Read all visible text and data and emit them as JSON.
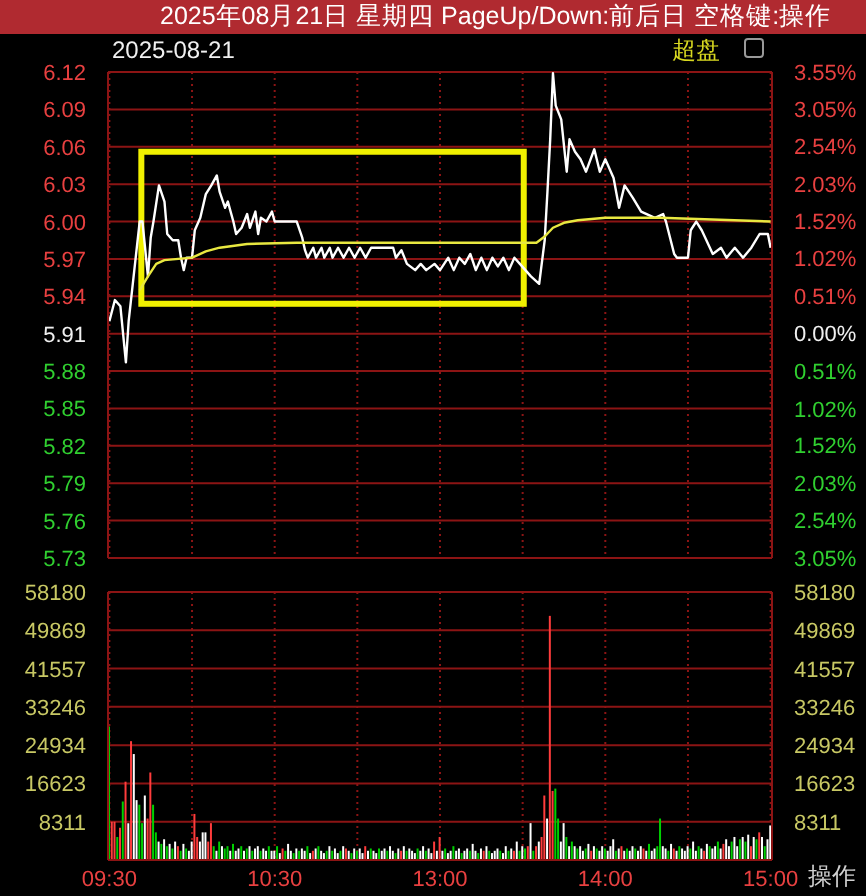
{
  "chart_data": [
    {
      "type": "line",
      "title": "2025年08月21日 星期四 PageUp/Down:前后日 空格键:操作",
      "subtitle": "2025-08-21",
      "annotations": [
        "超盘"
      ],
      "categories": [
        null,
        null,
        null,
        null,
        null,
        null,
        null,
        null,
        null,
        null,
        null,
        null,
        null,
        null,
        null,
        null,
        null,
        null,
        null,
        null,
        null,
        null,
        null,
        null,
        null,
        null,
        null,
        null,
        null,
        null,
        null,
        null,
        null,
        null,
        null,
        null,
        null,
        null,
        null,
        null,
        null,
        null,
        null,
        null,
        null,
        null,
        null,
        null,
        null,
        null,
        null,
        null,
        null,
        null,
        null,
        null,
        null,
        null,
        null,
        null,
        null,
        null,
        null,
        null,
        null,
        null,
        null,
        null,
        null,
        null,
        null,
        null,
        null,
        null,
        null,
        null,
        null,
        null,
        null,
        null,
        null,
        null,
        null,
        null,
        null,
        null,
        null,
        null,
        null,
        null,
        null,
        null,
        null,
        null,
        null,
        null,
        null,
        null,
        null,
        null,
        null,
        null,
        null,
        null,
        null,
        null,
        null,
        null,
        null,
        null,
        null,
        null,
        null,
        null,
        null,
        null,
        null,
        null,
        null,
        null,
        null,
        null,
        null,
        null,
        null,
        null,
        null,
        null,
        null,
        null,
        null,
        null,
        null,
        null,
        null,
        null,
        null,
        null,
        null,
        null,
        null,
        null,
        null,
        null,
        null,
        null,
        null,
        null,
        null,
        null,
        null,
        null,
        null,
        null,
        null,
        null,
        null,
        null,
        null,
        null,
        null,
        null,
        null,
        null,
        null,
        null,
        null,
        null,
        null,
        null,
        null,
        null,
        null,
        null,
        null,
        null,
        null,
        null,
        null,
        null,
        null,
        null,
        null,
        null,
        null,
        null,
        null,
        null,
        null,
        null,
        null,
        null,
        null,
        null,
        null,
        null,
        null,
        null,
        null,
        null,
        null,
        null,
        null,
        null,
        null,
        null,
        null,
        null,
        null,
        null,
        null,
        null,
        null,
        null,
        null,
        null,
        null,
        null,
        null,
        null,
        null,
        null,
        null,
        null,
        null,
        null,
        null,
        null,
        null,
        null,
        null,
        null,
        null,
        null,
        null,
        null,
        null,
        null,
        null,
        null,
        null
      ],
      "ylim": [
        5.73,
        6.12
      ],
      "yticks": [
        6.12,
        6.09,
        6.06,
        6.03,
        {
          "value": 6.0,
          "label": "6.00"
        },
        5.97,
        5.94,
        5.91,
        5.88,
        5.85,
        5.82,
        5.79,
        5.76,
        5.73
      ],
      "y2lim": [
        -3.05,
        3.55
      ],
      "y2ticks": [
        {
          "value": 3.55,
          "label": "3.55%"
        },
        {
          "value": 3.05,
          "label": "3.05%"
        },
        {
          "value": 2.54,
          "label": "2.54%"
        },
        {
          "value": 2.03,
          "label": "2.03%"
        },
        {
          "value": 1.52,
          "label": "1.52%"
        },
        {
          "value": 1.02,
          "label": "1.02%"
        },
        {
          "value": 0.51,
          "label": "0.51%"
        },
        {
          "value": 0,
          "label": "0.00%"
        },
        {
          "value": -0.51,
          "label": "0.51%"
        },
        {
          "value": -1.02,
          "label": "1.02%"
        },
        {
          "value": -1.52,
          "label": "1.52%"
        },
        {
          "value": -2.03,
          "label": "2.03%"
        },
        {
          "value": -2.54,
          "label": "2.54%"
        },
        {
          "value": -3.05,
          "label": "3.05%"
        }
      ],
      "grid": true,
      "tick_labels": "y",
      "marker": "none",
      "line_style": "solid",
      "series": [
        {
          "color": "#ffffff",
          "values": [
            5.92,
            null,
            5.937,
            null,
            5.932,
            null,
            5.887,
            5.92,
            null,
            null,
            null,
            6.0,
            6.0,
            null,
            5.956,
            5.987,
            6.0,
            null,
            6.029,
            null,
            6.016,
            5.99,
            null,
            5.985,
            null,
            5.985,
            5.971,
            5.961,
            5.971,
            null,
            5.971,
            5.993,
            null,
            6.003,
            null,
            6.022,
            null,
            6.029,
            null,
            6.037,
            6.024,
            null,
            6.011,
            6.016,
            null,
            6.0,
            5.99,
            null,
            5.995,
            null,
            6.006,
            5.995,
            null,
            6.008,
            5.99,
            6.003,
            null,
            6.0,
            null,
            6.008,
            6.0,
            null,
            null,
            null,
            null,
            null,
            null,
            null,
            6.0,
            null,
            5.987,
            5.977,
            5.971,
            null,
            5.979,
            5.971,
            null,
            5.979,
            5.971,
            null,
            5.979,
            5.971,
            null,
            5.979,
            null,
            5.971,
            null,
            5.979,
            null,
            5.971,
            null,
            5.979,
            null,
            5.971,
            null,
            5.979,
            null,
            null,
            null,
            null,
            null,
            null,
            null,
            5.979,
            5.971,
            null,
            5.977,
            null,
            5.966,
            null,
            null,
            5.961,
            null,
            5.966,
            null,
            5.961,
            null,
            null,
            5.966,
            null,
            5.961,
            null,
            null,
            5.971,
            null,
            5.961,
            null,
            5.971,
            null,
            5.966,
            null,
            5.974,
            null,
            5.961,
            null,
            5.971,
            null,
            5.961,
            null,
            5.971,
            null,
            5.964,
            null,
            5.971,
            null,
            5.961,
            null,
            5.971,
            null,
            5.966,
            null,
            5.961,
            null,
            5.956,
            null,
            null,
            5.95,
            null,
            5.985,
            6.024,
            6.066,
            6.119,
            6.093,
            null,
            6.082,
            null,
            6.04,
            6.066,
            null,
            6.056,
            null,
            6.05,
            null,
            6.04,
            null,
            null,
            6.058,
            null,
            6.04,
            null,
            6.05,
            null,
            null,
            6.035,
            null,
            6.011,
            null,
            6.029,
            null,
            null,
            6.019,
            null,
            null,
            6.008,
            null,
            null,
            null,
            null,
            6.003,
            null,
            null,
            6.006,
            6.0,
            null,
            null,
            5.974,
            5.971,
            null,
            null,
            null,
            5.971,
            5.993,
            null,
            6.0,
            null,
            5.993,
            null,
            null,
            null,
            5.974,
            null,
            null,
            5.979,
            null,
            5.971,
            null,
            null,
            5.979,
            null,
            null,
            5.971,
            null,
            null,
            5.979,
            null,
            null,
            5.99,
            null,
            null,
            5.99,
            5.979
          ]
        },
        {
          "color": "#e8e840",
          "values": [
            null,
            null,
            null,
            null,
            null,
            null,
            null,
            null,
            null,
            null,
            null,
            5.945,
            null,
            null,
            5.956,
            null,
            null,
            5.966,
            null,
            null,
            5.969,
            null,
            null,
            null,
            null,
            null,
            null,
            null,
            null,
            null,
            5.971,
            null,
            null,
            null,
            null,
            5.976,
            null,
            null,
            null,
            null,
            5.979,
            null,
            null,
            null,
            null,
            null,
            null,
            null,
            null,
            null,
            5.982,
            null,
            null,
            null,
            null,
            null,
            null,
            null,
            null,
            null,
            null,
            null,
            null,
            null,
            null,
            null,
            null,
            null,
            5.983,
            null,
            null,
            null,
            null,
            null,
            null,
            null,
            null,
            null,
            null,
            null,
            null,
            null,
            null,
            null,
            null,
            null,
            null,
            null,
            null,
            null,
            null,
            null,
            null,
            null,
            null,
            null,
            null,
            null,
            null,
            null,
            null,
            null,
            null,
            null,
            null,
            null,
            null,
            null,
            null,
            null,
            null,
            null,
            null,
            null,
            null,
            null,
            null,
            null,
            null,
            null,
            null,
            null,
            null,
            null,
            null,
            null,
            null,
            null,
            null,
            null,
            null,
            null,
            null,
            null,
            null,
            null,
            null,
            null,
            null,
            null,
            null,
            null,
            null,
            null,
            null,
            null,
            null,
            null,
            null,
            null,
            5.983,
            null,
            null,
            null,
            null,
            5.983,
            null,
            null,
            5.988,
            null,
            null,
            5.995,
            null,
            null,
            null,
            5.999,
            null,
            null,
            null,
            null,
            6.001,
            null,
            null,
            null,
            null,
            null,
            null,
            null,
            null,
            null,
            6.003,
            null,
            null,
            null,
            null,
            null,
            null,
            null,
            null,
            null,
            null,
            null,
            null,
            null,
            null,
            null,
            null,
            null,
            null,
            null,
            6.003,
            null,
            null,
            null,
            null,
            null,
            null,
            null,
            null,
            null,
            null,
            null,
            null,
            null,
            null,
            null,
            null,
            null,
            null,
            null,
            null,
            null,
            null,
            null,
            null,
            null,
            null,
            null,
            null,
            null,
            null,
            null,
            null,
            null,
            null,
            null,
            null,
            null,
            null,
            null,
            6.0
          ]
        }
      ]
    },
    {
      "type": "bar",
      "annotations": [
        "操作"
      ],
      "categories": [
        "09:30",
        null,
        null,
        null,
        null,
        null,
        null,
        null,
        null,
        null,
        null,
        null,
        null,
        null,
        null,
        null,
        null,
        null,
        null,
        null,
        null,
        null,
        null,
        null,
        null,
        null,
        null,
        null,
        null,
        null,
        null,
        null,
        null,
        null,
        null,
        null,
        null,
        null,
        null,
        null,
        null,
        null,
        null,
        null,
        null,
        null,
        null,
        null,
        null,
        null,
        null,
        null,
        null,
        null,
        null,
        null,
        null,
        null,
        null,
        null,
        "10:30",
        null,
        null,
        null,
        null,
        null,
        null,
        null,
        null,
        null,
        null,
        null,
        null,
        null,
        null,
        null,
        null,
        null,
        null,
        null,
        null,
        null,
        null,
        null,
        null,
        null,
        null,
        null,
        null,
        null,
        null,
        null,
        null,
        null,
        null,
        null,
        null,
        null,
        null,
        null,
        null,
        null,
        null,
        null,
        null,
        null,
        null,
        null,
        null,
        null,
        null,
        null,
        null,
        null,
        null,
        null,
        null,
        null,
        null,
        null,
        "13:00",
        null,
        null,
        null,
        null,
        null,
        null,
        null,
        null,
        null,
        null,
        null,
        null,
        null,
        null,
        null,
        null,
        null,
        null,
        null,
        null,
        null,
        null,
        null,
        null,
        null,
        null,
        null,
        null,
        null,
        null,
        null,
        null,
        null,
        null,
        null,
        null,
        null,
        null,
        null,
        null,
        null,
        null,
        null,
        null,
        null,
        null,
        null,
        null,
        null,
        null,
        null,
        null,
        null,
        null,
        null,
        null,
        null,
        null,
        null,
        "14:00",
        null,
        null,
        null,
        null,
        null,
        null,
        null,
        null,
        null,
        null,
        null,
        null,
        null,
        null,
        null,
        null,
        null,
        null,
        null,
        null,
        null,
        null,
        null,
        null,
        null,
        null,
        null,
        null,
        null,
        null,
        null,
        null,
        null,
        null,
        null,
        null,
        null,
        null,
        null,
        null,
        null,
        null,
        null,
        null,
        null,
        null,
        null,
        null,
        null,
        null,
        null,
        null,
        null,
        null,
        null,
        null,
        null,
        null,
        null,
        "15:00"
      ],
      "ylim": [
        0,
        58180
      ],
      "yticks": [
        8311,
        16623,
        24934,
        33246,
        41557,
        49869,
        58180
      ],
      "y2lim": [
        0,
        58180
      ],
      "y2ticks": [
        8311,
        16623,
        24934,
        33246,
        41557,
        49869,
        58180
      ],
      "grid": true,
      "values": [
        29000,
        8300,
        8300,
        5000,
        7000,
        12700,
        17000,
        8000,
        25800,
        23000,
        13000,
        12000,
        8000,
        14000,
        9000,
        19000,
        12000,
        6000,
        4000,
        3500,
        4500,
        3000,
        3500,
        2500,
        4000,
        3000,
        2000,
        3500,
        2500,
        2000,
        4000,
        10000,
        5000,
        4000,
        6000,
        6000,
        4000,
        8000,
        3000,
        2000,
        4000,
        3000,
        2500,
        3000,
        2000,
        3500,
        2000,
        2500,
        3000,
        2000,
        2500,
        3000,
        2000,
        2500,
        3000,
        2000,
        2500,
        2000,
        3000,
        2000,
        2000,
        3000,
        1500,
        2500,
        2000,
        3500,
        2000,
        1500,
        2500,
        2000,
        2500,
        2000,
        3000,
        1500,
        2000,
        2500,
        3000,
        2000,
        1500,
        2000,
        3000,
        2000,
        2500,
        1500,
        2000,
        3000,
        2500,
        2000,
        1500,
        2500,
        2000,
        2500,
        1500,
        3000,
        2000,
        2500,
        2000,
        1500,
        2500,
        2000,
        2500,
        2000,
        3000,
        2000,
        1500,
        2500,
        2000,
        3000,
        2000,
        2500,
        2000,
        1500,
        2500,
        2000,
        3000,
        2000,
        2500,
        1500,
        4000,
        2000,
        5000,
        2000,
        2500,
        1500,
        2000,
        3000,
        2000,
        2500,
        1500,
        2000,
        2500,
        2000,
        3500,
        2000,
        1500,
        2500,
        2000,
        3000,
        2000,
        1500,
        2000,
        2500,
        2000,
        1500,
        3000,
        2000,
        2500,
        2000,
        4000,
        2000,
        3000,
        2500,
        3000,
        8000,
        2000,
        3000,
        4000,
        5000,
        14000,
        9000,
        53000,
        15000,
        15500,
        9000,
        4000,
        8000,
        5000,
        3000,
        4000,
        3000,
        2500,
        3000,
        2000,
        2500,
        3500,
        2000,
        3000,
        2500,
        2000,
        3000,
        2500,
        2000,
        3000,
        4500,
        2000,
        2500,
        3000,
        2000,
        2500,
        2000,
        3000,
        2500,
        2000,
        3000,
        2500,
        2000,
        3500,
        2000,
        2500,
        3000,
        9000,
        3000,
        2500,
        2000,
        3500,
        2500,
        2000,
        3000,
        2500,
        2000,
        3000,
        2500,
        4000,
        2000,
        3000,
        2500,
        2000,
        3500,
        3000,
        2500,
        3000,
        4000,
        2500,
        3500,
        4500,
        3000,
        4000,
        5000,
        3000,
        4500,
        5000,
        4000,
        5500,
        3000,
        5000,
        4500,
        6000,
        5000,
        3000,
        4500,
        7500
      ],
      "colors": [
        "#00d000",
        "#ff3c3c",
        "#ff3c3c",
        "#00d000",
        "#ff3c3c",
        "#00d000",
        "#ff3c3c",
        "#ffffff",
        "#ff3c3c",
        "#ffffff",
        "#ffffff",
        "#00d000",
        "#00d000",
        "#ffffff",
        "#ff3c3c",
        "#ff3c3c",
        "#00d000",
        "#00d000",
        "#ffffff",
        "#00d000",
        "#ffffff",
        "#00d000",
        "#ffffff",
        "#00d000",
        "#ffffff",
        "#ff3c3c",
        "#00d000",
        "#ffffff",
        "#00d000",
        "#ffffff",
        "#ffffff",
        "#ff3c3c",
        "#ff3c3c",
        "#ffffff",
        "#ffffff",
        "#ffffff",
        "#ff3c3c",
        "#ff3c3c",
        "#00d000",
        "#ffffff",
        "#00d000",
        "#ffffff",
        "#00d000",
        "#00d000",
        "#ffffff",
        "#00d000",
        "#ffffff",
        "#ffffff",
        "#00d000",
        "#ffffff",
        "#00d000",
        "#ffffff",
        "#00d000",
        "#ffffff",
        "#ffffff",
        "#00d000",
        "#ffffff",
        "#ffffff",
        "#00d000",
        "#ffffff",
        "#ffffff",
        "#00d000",
        "#ffffff",
        "#ff3c3c",
        "#00d000",
        "#ffffff",
        "#ffffff",
        "#00d000",
        "#ffffff",
        "#00d000",
        "#ffffff",
        "#ffffff",
        "#00d000",
        "#ffffff",
        "#ff3c3c",
        "#ffffff",
        "#00d000",
        "#ffffff",
        "#ffffff",
        "#00d000",
        "#ffffff",
        "#00d000",
        "#ffffff",
        "#ffffff",
        "#00d000",
        "#ffffff",
        "#ff3c3c",
        "#ffffff",
        "#00d000",
        "#ffffff",
        "#00d000",
        "#ffffff",
        "#ffffff",
        "#ff3c3c",
        "#ffffff",
        "#00d000",
        "#ffffff",
        "#ffffff",
        "#00d000",
        "#ffffff",
        "#ffffff",
        "#00d000",
        "#ffffff",
        "#ffffff",
        "#00d000",
        "#ffffff",
        "#ff3c3c",
        "#ffffff",
        "#00d000",
        "#ffffff",
        "#ffffff",
        "#ffffff",
        "#00d000",
        "#ffffff",
        "#ffffff",
        "#00d000",
        "#ffffff",
        "#ffffff",
        "#ff3c3c",
        "#ffffff",
        "#ff3c3c",
        "#ffffff",
        "#00d000",
        "#ffffff",
        "#ffffff",
        "#00d000",
        "#ffffff",
        "#ffffff",
        "#00d000",
        "#ffffff",
        "#ffffff",
        "#00d000",
        "#ffffff",
        "#ffffff",
        "#00d000",
        "#ffffff",
        "#ff3c3c",
        "#ffffff",
        "#00d000",
        "#ffffff",
        "#ffffff",
        "#ffffff",
        "#00d000",
        "#ffffff",
        "#ffffff",
        "#00d000",
        "#ffffff",
        "#ff3c3c",
        "#ffffff",
        "#00d000",
        "#ffffff",
        "#00d000",
        "#ff3c3c",
        "#ffffff",
        "#00d000",
        "#ff3c3c",
        "#ffffff",
        "#ff3c3c",
        "#ff3c3c",
        "#ffffff",
        "#ff3c3c",
        "#ff3c3c",
        "#00d000",
        "#00d000",
        "#ffffff",
        "#ffffff",
        "#00d000",
        "#ffffff",
        "#00d000",
        "#ffffff",
        "#00d000",
        "#ffffff",
        "#ffffff",
        "#00d000",
        "#ffffff",
        "#ff3c3c",
        "#ffffff",
        "#00d000",
        "#ffffff",
        "#ffffff",
        "#00d000",
        "#ffffff",
        "#ffffff",
        "#ffffff",
        "#00d000",
        "#ffffff",
        "#ff3c3c",
        "#ffffff",
        "#00d000",
        "#ffffff",
        "#ffffff",
        "#00d000",
        "#ffffff",
        "#ffffff",
        "#ff3c3c",
        "#ffffff",
        "#00d000",
        "#ffffff",
        "#ffffff",
        "#00d000",
        "#00d000",
        "#ffffff",
        "#ffffff",
        "#00d000",
        "#ffffff",
        "#ff3c3c",
        "#ffffff",
        "#00d000",
        "#ffffff",
        "#ffffff",
        "#ffffff",
        "#00d000",
        "#ffffff",
        "#ffffff",
        "#00d000",
        "#ffffff",
        "#ff3c3c",
        "#ffffff",
        "#00d000",
        "#ffffff",
        "#ffffff",
        "#00d000",
        "#ffffff",
        "#ff3c3c",
        "#ffffff",
        "#ffffff",
        "#00d000",
        "#ffffff",
        "#ffffff",
        "#00d000",
        "#ffffff",
        "#00d000",
        "#ffffff",
        "#ff3c3c",
        "#ffffff",
        "#00d000",
        "#ff3c3c",
        "#ffffff",
        "#00d000",
        "#ffffff",
        "#ffffff"
      ]
    }
  ]
}
